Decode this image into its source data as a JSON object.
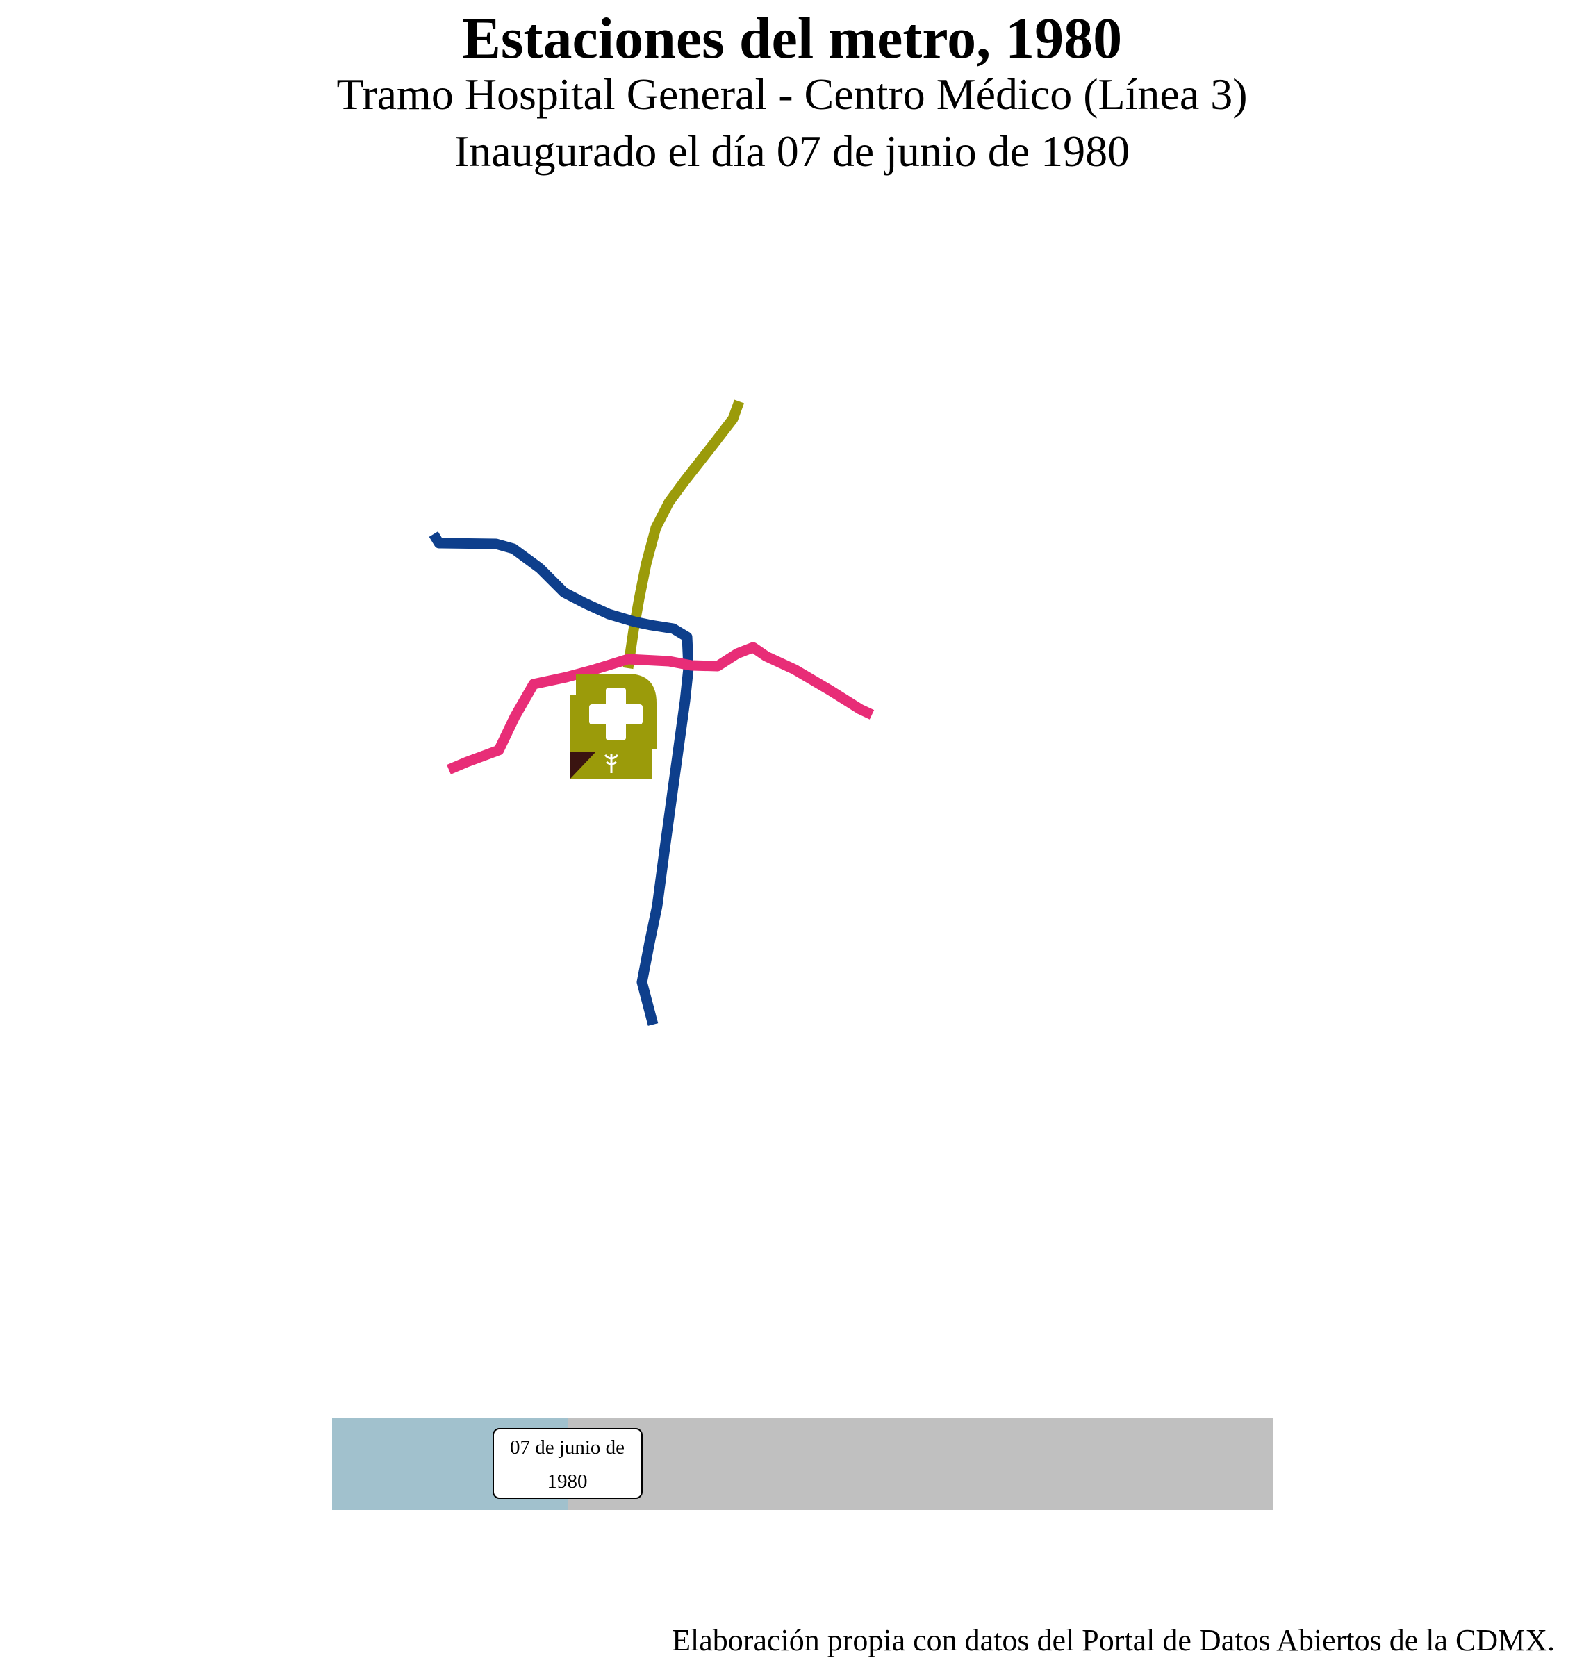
{
  "header": {
    "title": "Estaciones del metro, 1980",
    "subtitle_line1": "Tramo Hospital General - Centro Médico (Línea 3)",
    "subtitle_line2": "Inaugurado el día 07 de junio de 1980"
  },
  "map": {
    "lines": [
      {
        "color": "#9b9b0a"
      },
      {
        "color": "#0e3f8c"
      },
      {
        "color": "#e82d77"
      }
    ],
    "station_icons": [
      {
        "name": "hospital-general-icon",
        "color": "#9b9b0a",
        "symbol": "cross"
      },
      {
        "name": "centro-medico-icon",
        "color": "#9b9b0a",
        "accent": "#3a1410",
        "symbol": "caduceus"
      }
    ]
  },
  "timeline": {
    "progress": 0.25,
    "label_line1": "07 de junio de",
    "label_line2": "1980",
    "colors": {
      "elapsed": "#a1c1cd",
      "remaining": "#c0c0c0"
    }
  },
  "footer": {
    "caption": "Elaboración propia con datos del Portal de Datos Abiertos de la CDMX."
  }
}
